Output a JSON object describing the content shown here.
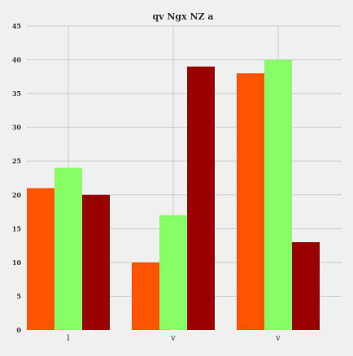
{
  "chart_data": {
    "type": "bar",
    "title": "qv  Ngx NZ a",
    "xlabel": "",
    "ylabel": "",
    "categories": [
      "l",
      "v",
      "v"
    ],
    "series": [
      {
        "values": [
          21,
          10,
          38
        ],
        "color": "#ff5500"
      },
      {
        "values": [
          24,
          17,
          40
        ],
        "color": "#88ff66"
      },
      {
        "values": [
          20,
          39,
          13
        ],
        "color": "#990000"
      }
    ],
    "ylim": [
      0,
      45
    ],
    "yticks": [
      0,
      5,
      10,
      15,
      20,
      25,
      30,
      35,
      40,
      45
    ],
    "grid": true,
    "legend": "none",
    "background_color": "#f0f0f0",
    "grid_color": "#cbcbcb"
  }
}
